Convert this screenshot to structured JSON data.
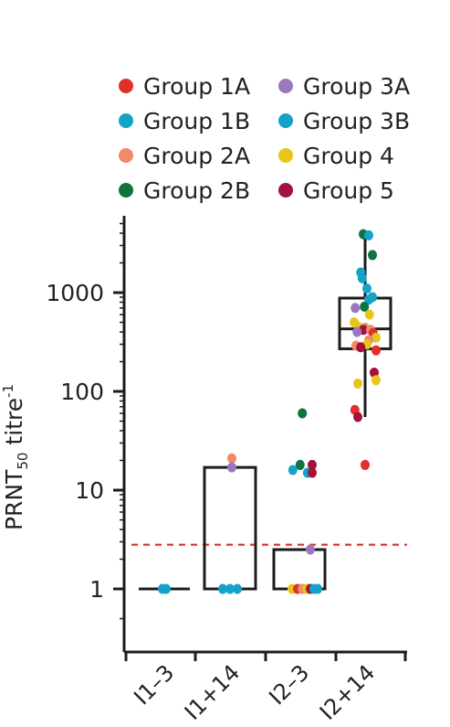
{
  "chart_data": {
    "type": "box-scatter",
    "title": "",
    "xlabel": "",
    "ylabel": {
      "prefix": "PRNT",
      "sub": "50",
      "mid": " titre",
      "sup": "-1"
    },
    "yscale": "log",
    "ylim": [
      0.3,
      6000
    ],
    "yticks": [
      {
        "value": 1,
        "label": "1"
      },
      {
        "value": 10,
        "label": "10"
      },
      {
        "value": 100,
        "label": "100"
      },
      {
        "value": 1000,
        "label": "1000"
      }
    ],
    "categories": [
      "I1–3",
      "I1+14",
      "I2–3",
      "I2+14"
    ],
    "threshold": {
      "value": 2.8,
      "color": "#d9312b",
      "style": "dashed"
    },
    "legend": {
      "placement": "top",
      "items": [
        {
          "label": "Group 1A",
          "color": "#e0302a"
        },
        {
          "label": "Group 1B",
          "color": "#12a3c9"
        },
        {
          "label": "Group 2A",
          "color": "#ef8a6b"
        },
        {
          "label": "Group 2B",
          "color": "#0f7340"
        },
        {
          "label": "Group 3A",
          "color": "#9b77c0"
        },
        {
          "label": "Group 3B",
          "color": "#12a3c9"
        },
        {
          "label": "Group 4",
          "color": "#e7c61a"
        },
        {
          "label": "Group 5",
          "color": "#a3123a"
        }
      ]
    },
    "boxes": [
      {
        "category": "I1–3",
        "q1": 1,
        "median": 1,
        "q3": 1,
        "whisker_low": 1,
        "whisker_high": 1
      },
      {
        "category": "I1+14",
        "q1": 1,
        "median": 1,
        "q3": 17,
        "whisker_low": 1,
        "whisker_high": 17
      },
      {
        "category": "I2–3",
        "q1": 1,
        "median": 1,
        "q3": 2.5,
        "whisker_low": 1,
        "whisker_high": 2.5
      },
      {
        "category": "I2+14",
        "q1": 270,
        "median": 430,
        "q3": 880,
        "whisker_low": 55,
        "whisker_high": 3700
      }
    ],
    "points": [
      {
        "category": "I1–3",
        "group": "Group 1B",
        "value": 1,
        "jitter": -0.05
      },
      {
        "category": "I1–3",
        "group": "Group 3B",
        "value": 1,
        "jitter": 0.05
      },
      {
        "category": "I1+14",
        "group": "Group 2A",
        "value": 21,
        "jitter": 0.05
      },
      {
        "category": "I1+14",
        "group": "Group 3A",
        "value": 17,
        "jitter": 0.05
      },
      {
        "category": "I1+14",
        "group": "Group 1B",
        "value": 1,
        "jitter": -0.2
      },
      {
        "category": "I1+14",
        "group": "Group 1B",
        "value": 1,
        "jitter": 0.0
      },
      {
        "category": "I1+14",
        "group": "Group 3B",
        "value": 1,
        "jitter": 0.2
      },
      {
        "category": "I2–3",
        "group": "Group 2B",
        "value": 60,
        "jitter": 0.08
      },
      {
        "category": "I2–3",
        "group": "Group 2B",
        "value": 18,
        "jitter": 0.02
      },
      {
        "category": "I2–3",
        "group": "Group 5",
        "value": 18,
        "jitter": 0.35
      },
      {
        "category": "I2–3",
        "group": "Group 1B",
        "value": 16,
        "jitter": -0.18
      },
      {
        "category": "I2–3",
        "group": "Group 3B",
        "value": 15,
        "jitter": 0.22
      },
      {
        "category": "I2–3",
        "group": "Group 5",
        "value": 15,
        "jitter": 0.35
      },
      {
        "category": "I2–3",
        "group": "Group 3A",
        "value": 2.5,
        "jitter": 0.3
      },
      {
        "category": "I2–3",
        "group": "Group 4",
        "value": 1,
        "jitter": -0.2
      },
      {
        "category": "I2–3",
        "group": "Group 1A",
        "value": 1,
        "jitter": -0.05
      },
      {
        "category": "I2–3",
        "group": "Group 2A",
        "value": 1,
        "jitter": 0.08
      },
      {
        "category": "I2–3",
        "group": "Group 4",
        "value": 1,
        "jitter": 0.2
      },
      {
        "category": "I2–3",
        "group": "Group 5",
        "value": 1,
        "jitter": 0.3
      },
      {
        "category": "I2–3",
        "group": "Group 1B",
        "value": 1,
        "jitter": 0.4
      },
      {
        "category": "I2–3",
        "group": "Group 3B",
        "value": 1,
        "jitter": 0.5
      },
      {
        "category": "I2+14",
        "group": "Group 2B",
        "value": 3900,
        "jitter": -0.05
      },
      {
        "category": "I2+14",
        "group": "Group 1B",
        "value": 3800,
        "jitter": 0.1
      },
      {
        "category": "I2+14",
        "group": "Group 2B",
        "value": 2400,
        "jitter": 0.2
      },
      {
        "category": "I2+14",
        "group": "Group 1B",
        "value": 1600,
        "jitter": -0.12
      },
      {
        "category": "I2+14",
        "group": "Group 3B",
        "value": 1400,
        "jitter": -0.08
      },
      {
        "category": "I2+14",
        "group": "Group 1B",
        "value": 1100,
        "jitter": 0.05
      },
      {
        "category": "I2+14",
        "group": "Group 3B",
        "value": 900,
        "jitter": 0.2
      },
      {
        "category": "I2+14",
        "group": "Group 1B",
        "value": 850,
        "jitter": 0.1
      },
      {
        "category": "I2+14",
        "group": "Group 2B",
        "value": 720,
        "jitter": -0.02
      },
      {
        "category": "I2+14",
        "group": "Group 3A",
        "value": 700,
        "jitter": -0.27
      },
      {
        "category": "I2+14",
        "group": "Group 4",
        "value": 600,
        "jitter": 0.12
      },
      {
        "category": "I2+14",
        "group": "Group 4",
        "value": 500,
        "jitter": -0.3
      },
      {
        "category": "I2+14",
        "group": "Group 4",
        "value": 450,
        "jitter": -0.18
      },
      {
        "category": "I2+14",
        "group": "Group 2A",
        "value": 440,
        "jitter": 0.0
      },
      {
        "category": "I2+14",
        "group": "Group 5",
        "value": 420,
        "jitter": -0.05
      },
      {
        "category": "I2+14",
        "group": "Group 2A",
        "value": 420,
        "jitter": 0.15
      },
      {
        "category": "I2+14",
        "group": "Group 3A",
        "value": 400,
        "jitter": -0.22
      },
      {
        "category": "I2+14",
        "group": "Group 1A",
        "value": 390,
        "jitter": 0.22
      },
      {
        "category": "I2+14",
        "group": "Group 4",
        "value": 350,
        "jitter": 0.3
      },
      {
        "category": "I2+14",
        "group": "Group 2A",
        "value": 330,
        "jitter": 0.1
      },
      {
        "category": "I2+14",
        "group": "Group 4",
        "value": 300,
        "jitter": 0.05
      },
      {
        "category": "I2+14",
        "group": "Group 2A",
        "value": 290,
        "jitter": -0.25
      },
      {
        "category": "I2+14",
        "group": "Group 5",
        "value": 280,
        "jitter": -0.12
      },
      {
        "category": "I2+14",
        "group": "Group 1A",
        "value": 260,
        "jitter": 0.3
      },
      {
        "category": "I2+14",
        "group": "Group 5",
        "value": 155,
        "jitter": 0.25
      },
      {
        "category": "I2+14",
        "group": "Group 4",
        "value": 130,
        "jitter": 0.3
      },
      {
        "category": "I2+14",
        "group": "Group 4",
        "value": 120,
        "jitter": -0.2
      },
      {
        "category": "I2+14",
        "group": "Group 1A",
        "value": 65,
        "jitter": -0.28
      },
      {
        "category": "I2+14",
        "group": "Group 5",
        "value": 55,
        "jitter": -0.2
      },
      {
        "category": "I2+14",
        "group": "Group 1A",
        "value": 18,
        "jitter": 0.0
      }
    ]
  }
}
